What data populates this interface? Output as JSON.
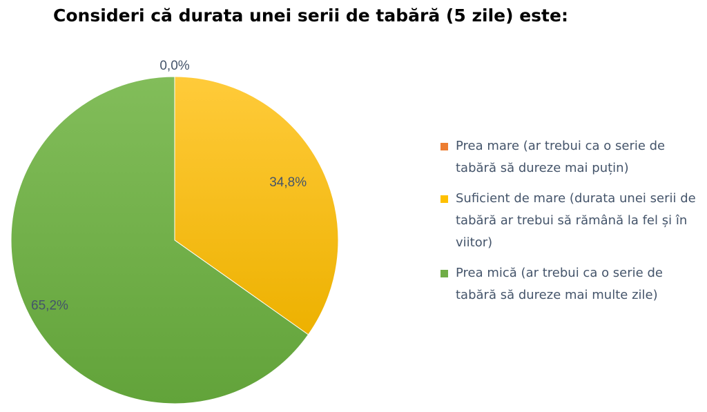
{
  "chart_data": {
    "type": "pie",
    "title": "Consideri că durata unei serii de tabără (5 zile) este:",
    "series": [
      {
        "name": "Prea mare (ar trebui ca o serie de tabără să dureze mai puțin)",
        "value": 0.0,
        "label": "0,0%",
        "color": "#ED7D31"
      },
      {
        "name": "Suficient de mare (durata unei serii de tabără ar trebui să rămână la fel și în viitor)",
        "value": 34.8,
        "label": "34,8%",
        "color": "#FFC000"
      },
      {
        "name": "Prea mică (ar trebui ca o serie de tabără să dureze mai multe zile)",
        "value": 65.2,
        "label": "65,2%",
        "color": "#70AD47"
      }
    ],
    "legend_position": "right",
    "start_angle": "12 o'clock",
    "direction": "clockwise"
  }
}
